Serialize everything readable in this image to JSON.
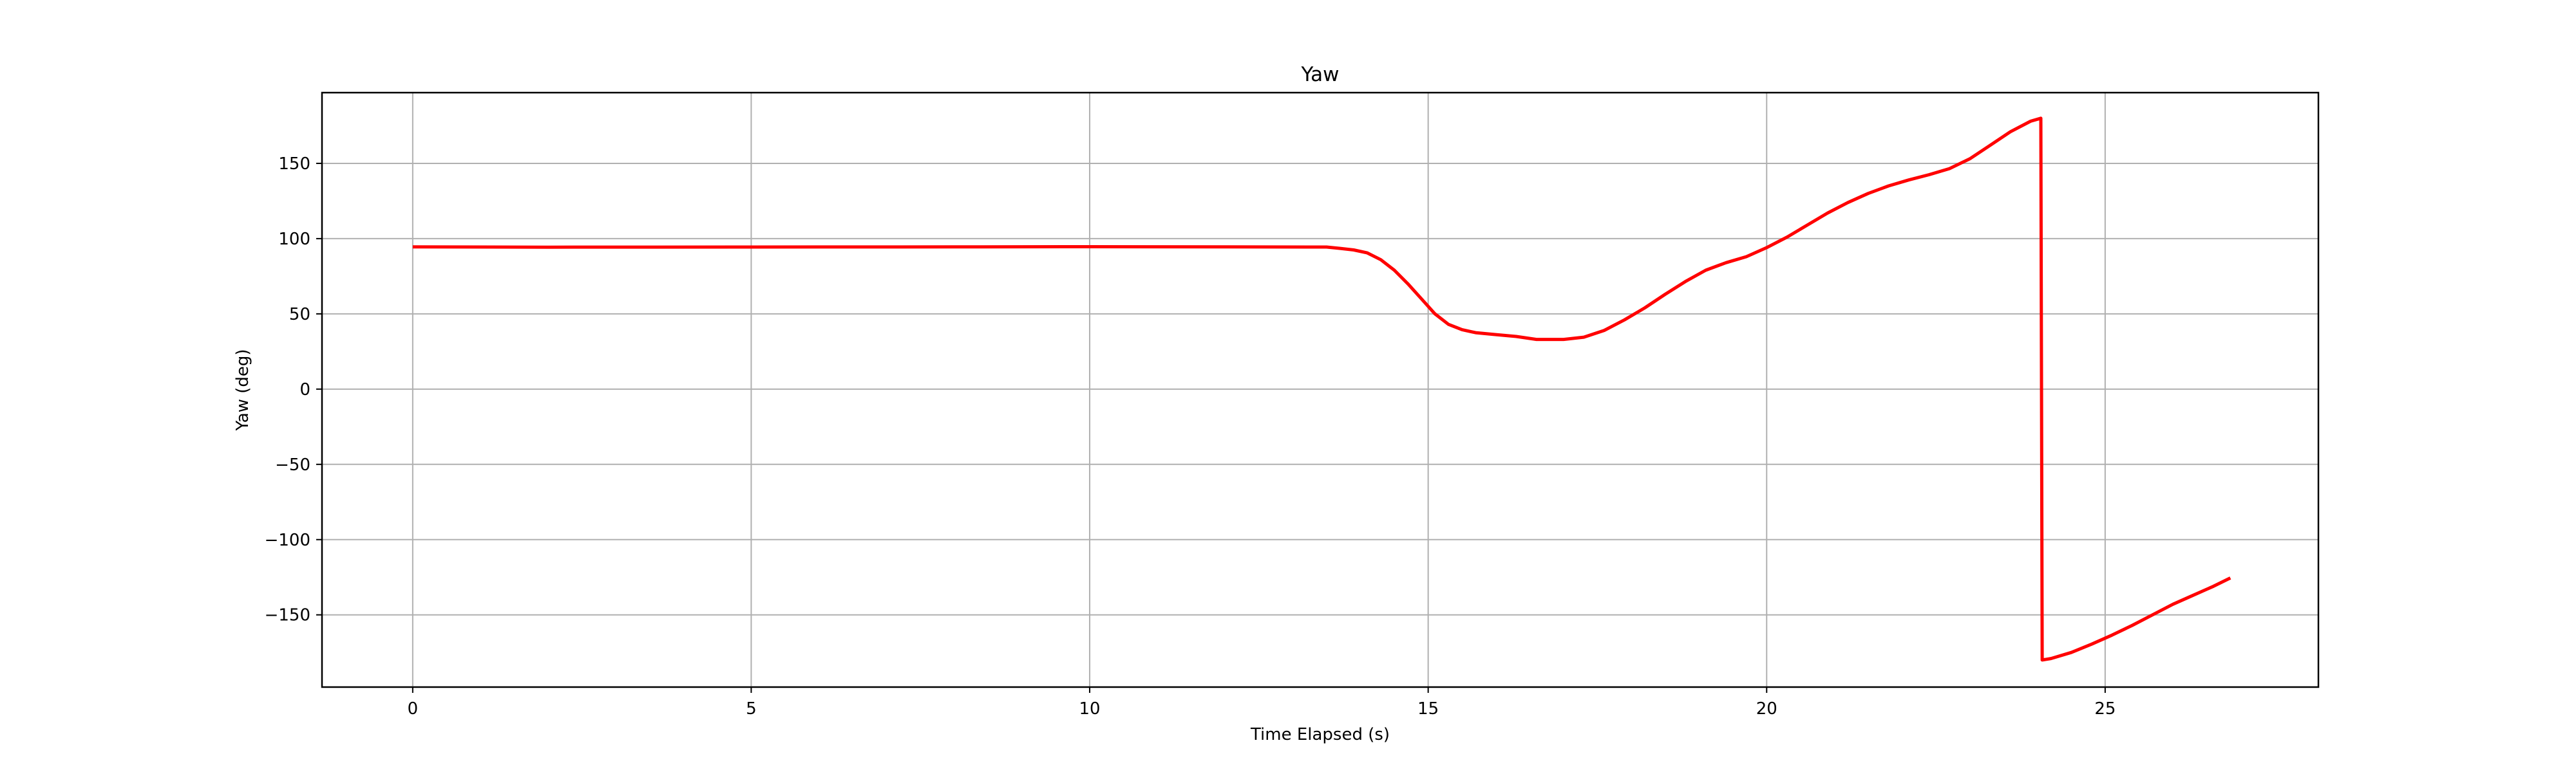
{
  "chart_data": {
    "type": "line",
    "title": "Yaw",
    "xlabel": "Time Elapsed (s)",
    "ylabel": "Yaw (deg)",
    "xlim": [
      -1.34,
      28.15
    ],
    "ylim": [
      -198,
      197
    ],
    "xticks": [
      0,
      5,
      10,
      15,
      20,
      25
    ],
    "yticks": [
      -150,
      -100,
      -50,
      0,
      50,
      100,
      150
    ],
    "grid": true,
    "series": [
      {
        "color": "#ff0000",
        "points": [
          [
            0.0,
            94.5
          ],
          [
            2.0,
            94.3
          ],
          [
            5.0,
            94.4
          ],
          [
            8.0,
            94.5
          ],
          [
            10.0,
            94.6
          ],
          [
            12.0,
            94.5
          ],
          [
            13.5,
            94.4
          ],
          [
            13.7,
            93.5
          ],
          [
            13.9,
            92.5
          ],
          [
            14.1,
            90.5
          ],
          [
            14.3,
            86.0
          ],
          [
            14.5,
            79.0
          ],
          [
            14.7,
            70.0
          ],
          [
            14.9,
            60.0
          ],
          [
            15.1,
            50.0
          ],
          [
            15.3,
            43.0
          ],
          [
            15.5,
            39.5
          ],
          [
            15.7,
            37.5
          ],
          [
            16.0,
            36.2
          ],
          [
            16.3,
            35.0
          ],
          [
            16.6,
            33.0
          ],
          [
            17.0,
            33.0
          ],
          [
            17.3,
            34.5
          ],
          [
            17.6,
            39.0
          ],
          [
            17.9,
            46.0
          ],
          [
            18.2,
            54.0
          ],
          [
            18.5,
            63.0
          ],
          [
            18.8,
            71.5
          ],
          [
            19.1,
            79.0
          ],
          [
            19.4,
            84.0
          ],
          [
            19.7,
            88.0
          ],
          [
            20.0,
            94.0
          ],
          [
            20.3,
            101.0
          ],
          [
            20.6,
            109.0
          ],
          [
            20.9,
            117.0
          ],
          [
            21.2,
            124.0
          ],
          [
            21.5,
            130.0
          ],
          [
            21.8,
            135.0
          ],
          [
            22.1,
            139.0
          ],
          [
            22.4,
            142.5
          ],
          [
            22.7,
            146.5
          ],
          [
            23.0,
            153.0
          ],
          [
            23.3,
            162.0
          ],
          [
            23.6,
            171.0
          ],
          [
            23.9,
            178.0
          ],
          [
            24.05,
            180.0
          ],
          [
            24.07,
            -180.0
          ],
          [
            24.2,
            -179.0
          ],
          [
            24.5,
            -175.0
          ],
          [
            24.8,
            -169.5
          ],
          [
            25.1,
            -163.5
          ],
          [
            25.4,
            -157.0
          ],
          [
            25.7,
            -150.0
          ],
          [
            26.0,
            -143.0
          ],
          [
            26.3,
            -137.0
          ],
          [
            26.6,
            -131.0
          ],
          [
            26.85,
            -125.5
          ]
        ]
      }
    ]
  }
}
